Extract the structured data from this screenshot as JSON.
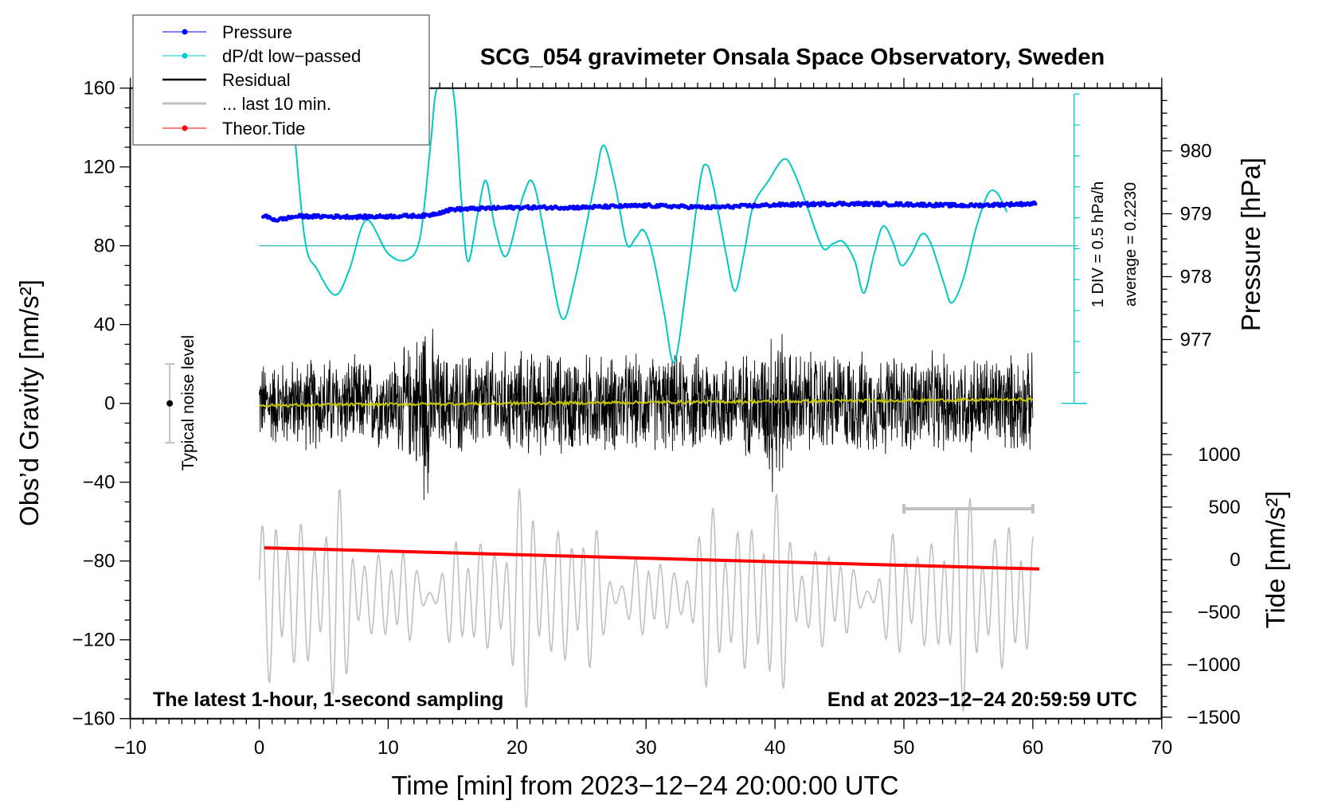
{
  "chart_data": {
    "type": "line",
    "title": "SCG_054 gravimeter Onsala Space Observatory, Sweden",
    "xlabel": "Time [min] from 2023−12−24 20:00:00 UTC",
    "ylabel": "Obs’d Gravity [nm/s²]",
    "ylabel_right_top": "Pressure [hPa]",
    "ylabel_right_bottom": "Tide [nm/s²]",
    "xlim": [
      -10,
      70
    ],
    "ylim": [
      -160,
      160
    ],
    "x_ticks": [
      "−10",
      "0",
      "10",
      "20",
      "30",
      "40",
      "50",
      "60",
      "70"
    ],
    "y_ticks": [
      "160",
      "120",
      "80",
      "40",
      "0",
      "−40",
      "−80",
      "−120",
      "−160"
    ],
    "pressure_ticks": [
      "980",
      "979",
      "978",
      "977"
    ],
    "tide_ticks": [
      "1000",
      "500",
      "0",
      "−500",
      "−1000",
      "−1500"
    ],
    "legend": {
      "placement": "top-left",
      "entries": [
        "Pressure",
        "dP/dt low−passed",
        "Residual",
        "... last 10 min.",
        "Theor.Tide"
      ]
    },
    "annotations": {
      "bottom_left": "The latest 1-hour, 1-second sampling",
      "bottom_right": "End at 2023−12−24 20:59:59 UTC",
      "noise_label": "Typical noise level",
      "div_label": "1 DIV = 0.5 hPa/h",
      "average_label": "average = 0.2230"
    },
    "colors": {
      "pressure": "#0000ff",
      "dpdt": "#00c8c8",
      "residual": "#000000",
      "last10": "#c0c0c0",
      "tide": "#ff0000",
      "mean": "#c8c800"
    },
    "pressure_hpa": {
      "x": [
        0.3,
        1.3,
        3,
        8,
        13,
        15,
        20,
        25,
        30,
        35,
        40,
        45,
        50,
        55,
        60
      ],
      "y": [
        978.97,
        978.9,
        978.96,
        978.95,
        978.97,
        979.07,
        979.1,
        979.1,
        979.13,
        979.1,
        979.14,
        979.16,
        979.15,
        979.13,
        979.16
      ]
    },
    "dpdt_lowpassed_display": {
      "baseline": 80,
      "x": [
        2.4,
        3.5,
        4.5,
        5.9,
        7,
        8.3,
        10,
        11.5,
        12.5,
        13.3,
        13.8,
        15.0,
        15.7,
        16.2,
        17,
        17.6,
        18.3,
        19.2,
        20.5,
        21.3,
        22.4,
        23.5,
        24.5,
        26,
        26.7,
        27.6,
        28.5,
        29.2,
        29.8,
        30.5,
        31.4,
        32.2,
        33.2,
        34.2,
        34.7,
        35.2,
        36.2,
        36.9,
        37.6,
        38.3,
        39.5,
        40.7,
        41.5,
        42.6,
        43.7,
        44.5,
        45.3,
        46.2,
        46.9,
        47.7,
        48.4,
        49.2,
        49.8,
        50.6,
        51.4,
        52.1,
        53.1,
        53.7,
        54.6,
        55.6,
        56.5,
        57.2,
        58
      ],
      "y": [
        165,
        85,
        68,
        55,
        68,
        93,
        76,
        73,
        85,
        132,
        160,
        160,
        102,
        72,
        98,
        113,
        89,
        75,
        106,
        111,
        76,
        43,
        63,
        111,
        131,
        111,
        81,
        84,
        88,
        76,
        46,
        21,
        63,
        113,
        121,
        111,
        76,
        57,
        76,
        100,
        113,
        124,
        117,
        98,
        79,
        81,
        82,
        72,
        56,
        76,
        90,
        81,
        70,
        76,
        86,
        81,
        61,
        51,
        63,
        89,
        106,
        107,
        97
      ]
    },
    "residual": {
      "x_range": [
        0,
        60
      ],
      "mean_start": -1,
      "mean_end": 2,
      "envelope_x": [
        0,
        5,
        10,
        12,
        12.8,
        14,
        20,
        30,
        39,
        40,
        41,
        50,
        60
      ],
      "envelope_amp": [
        24,
        27,
        25,
        35,
        58,
        28,
        30,
        27,
        30,
        58,
        30,
        28,
        28
      ]
    },
    "last_10_min": {
      "x_range": [
        0,
        60
      ],
      "center": -98,
      "amplitude": 40,
      "bracket_x": [
        50,
        60
      ]
    },
    "theor_tide": {
      "x": [
        0.4,
        60.5
      ],
      "y": [
        113,
        -89
      ]
    },
    "noise_level": {
      "x": -7,
      "center": 0,
      "half_range": 20
    }
  }
}
